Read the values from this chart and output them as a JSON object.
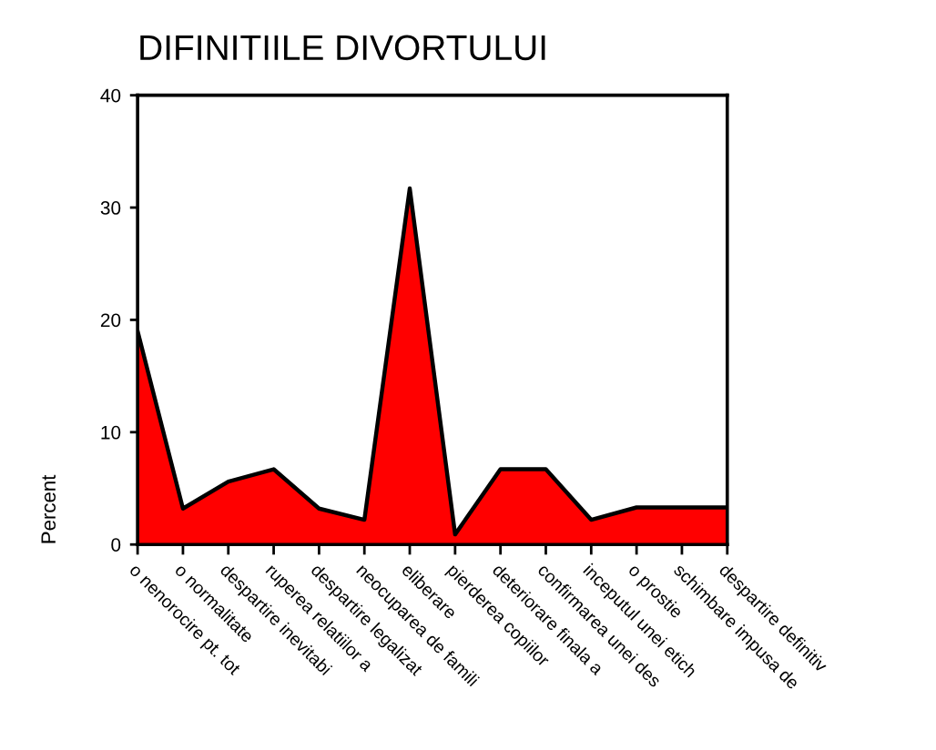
{
  "chart_data": {
    "type": "area",
    "title": "DIFINITIILE DIVORTULUI",
    "ylabel": "Percent",
    "categories": [
      "o nenorocire pt. tot",
      "o normalitate",
      "despartire inevitabi",
      "ruperea relatiilor a",
      "despartire legalizat",
      "neocuparea de famili",
      "eliberare",
      "pierderea copiilor",
      "deteriorare finala a",
      "confirmarea unei des",
      "inceputul unei etich",
      "o prostie",
      "schimbare impusa de",
      "despartire definitiv"
    ],
    "values": [
      19.0,
      3.2,
      5.6,
      6.7,
      3.2,
      2.2,
      31.7,
      0.9,
      6.7,
      6.7,
      2.2,
      3.3,
      3.3,
      3.3
    ],
    "color": "#ff0000",
    "ylim": [
      0,
      40
    ],
    "yticks": [
      0,
      10,
      20,
      30,
      40
    ],
    "grid": false
  }
}
